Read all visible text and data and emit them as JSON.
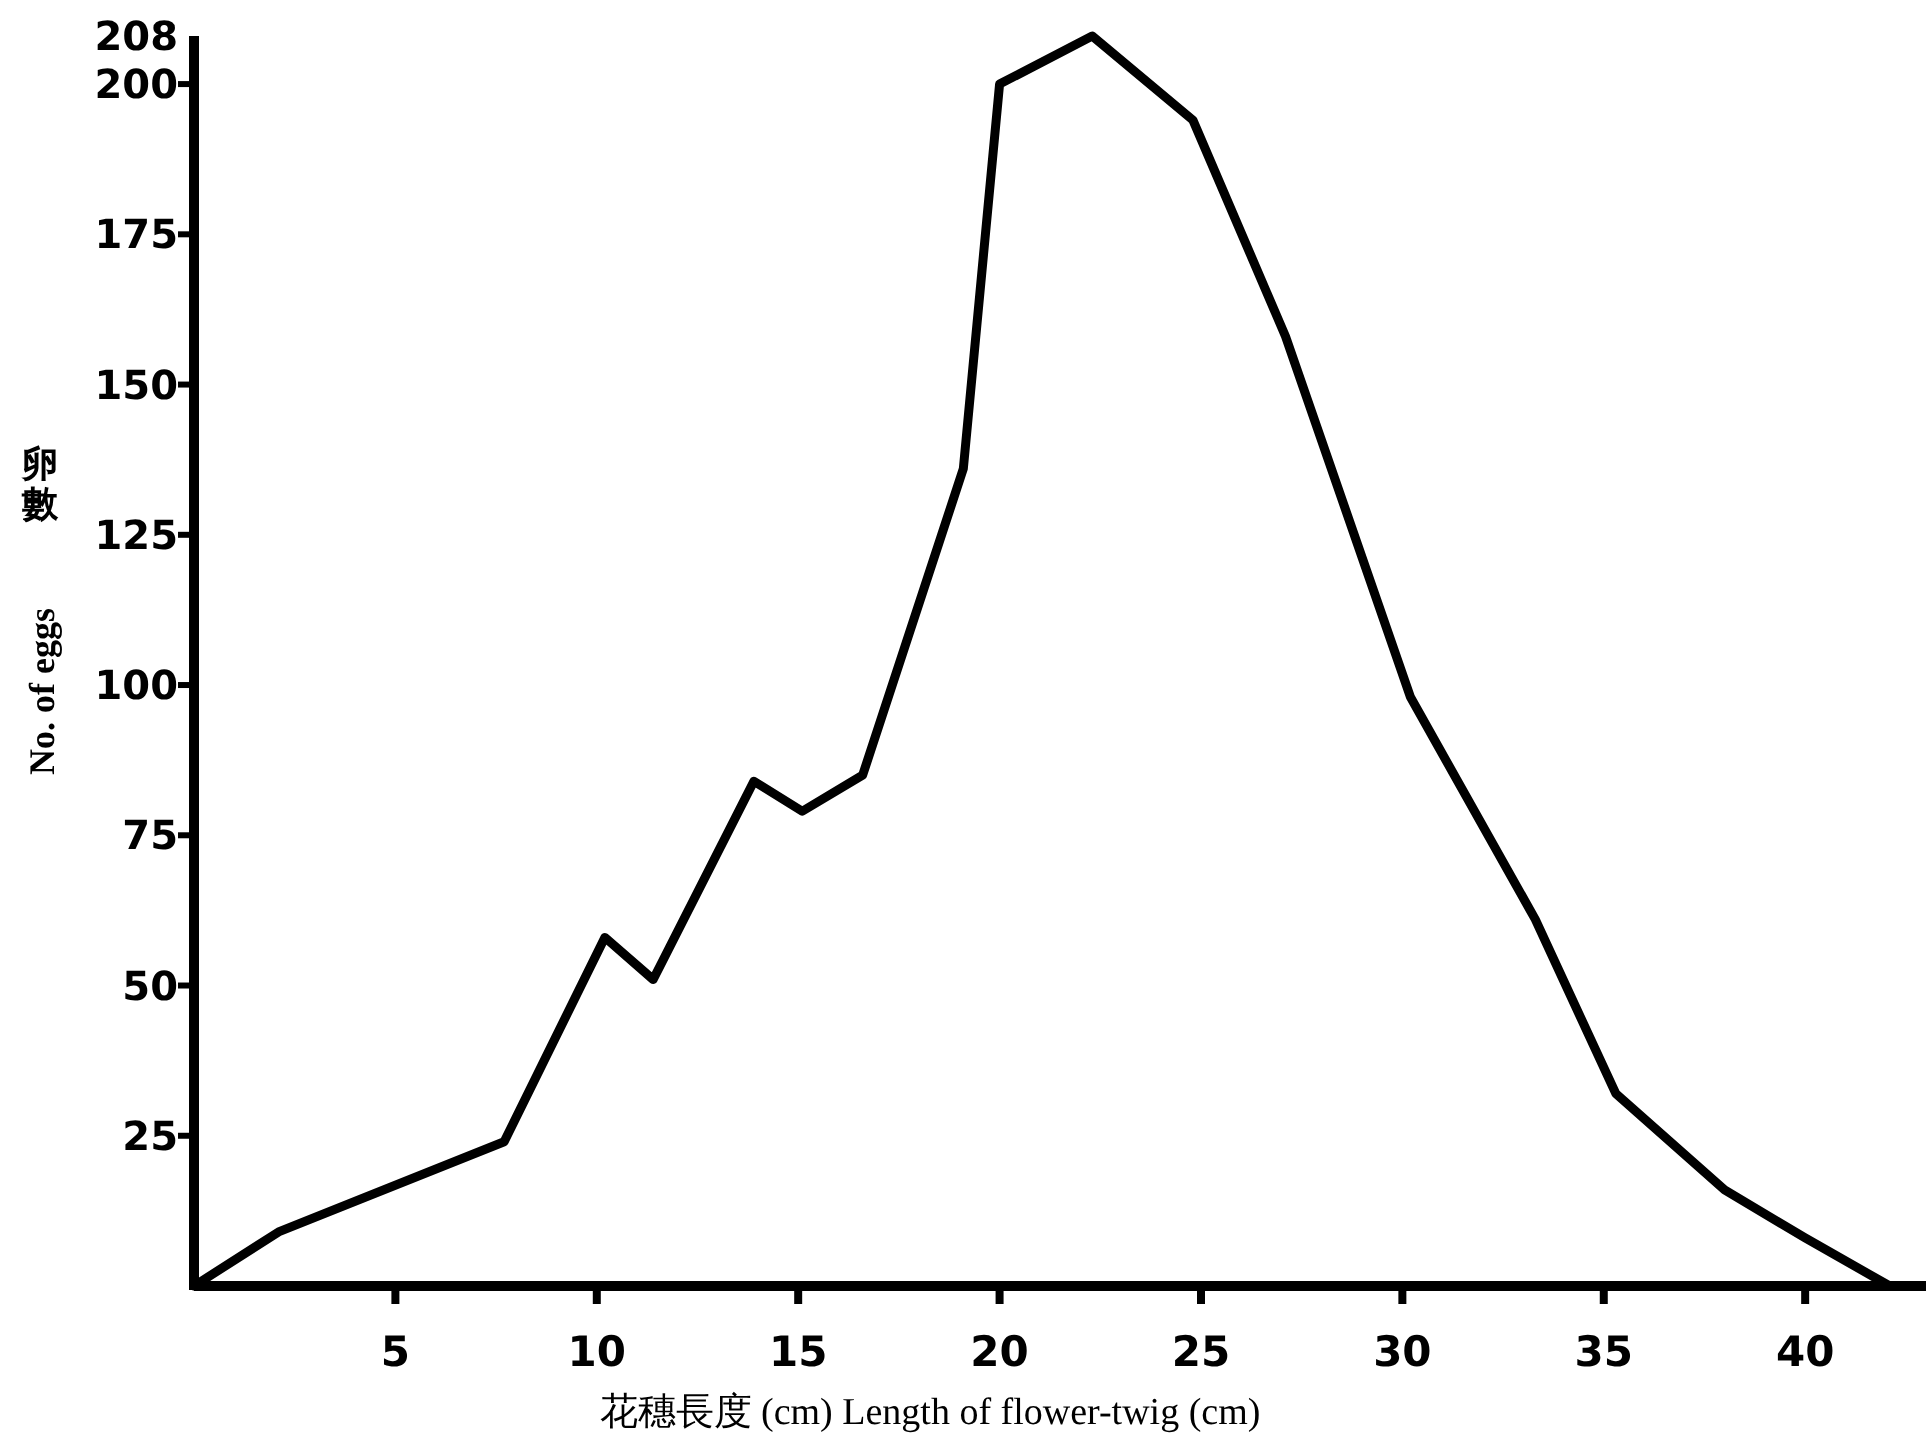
{
  "chart_data": {
    "type": "line",
    "xlabel": "花穗長度 (cm) Length of flower-twig (cm)",
    "ylabel": "卵數 No. of eggs",
    "x": [
      0,
      2.1,
      7.7,
      10.2,
      11.4,
      13.9,
      15.1,
      16.6,
      19.1,
      20.0,
      22.3,
      24.8,
      27.1,
      30.2,
      33.3,
      35.3,
      38.0,
      40.0,
      42.1
    ],
    "series": [
      {
        "color": "#000000",
        "values": [
          0,
          9,
          24,
          58,
          51,
          84,
          79,
          85,
          136,
          200,
          208,
          194,
          158,
          98,
          61,
          32,
          16,
          8,
          0
        ]
      }
    ],
    "xlim": [
      0,
      43
    ],
    "ylim": [
      0,
      208
    ],
    "xticks": [
      5,
      10,
      15,
      20,
      25,
      30,
      35,
      40
    ],
    "yticks": [
      25,
      50,
      75,
      100,
      125,
      150,
      175,
      200,
      {
        "value": 208,
        "label": "208"
      }
    ],
    "grid": false,
    "marker": "none",
    "line_style": "solid"
  }
}
